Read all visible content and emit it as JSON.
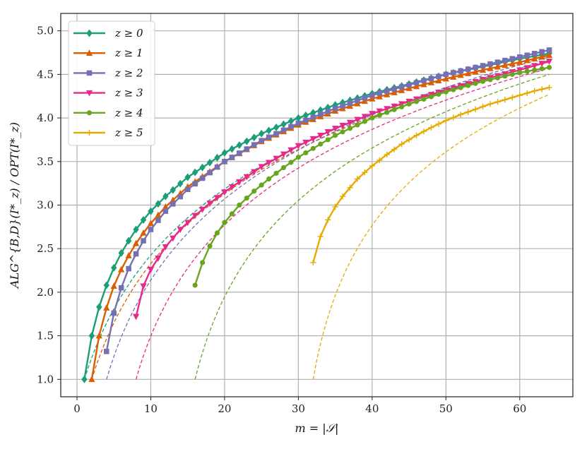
{
  "chart_data": {
    "type": "line",
    "xlabel": "m = |𝒮|",
    "ylabel": "ALG^{B,D}(I*_z) / OPT(I*_z)",
    "xlim": [
      -2.2,
      67.2
    ],
    "ylim": [
      0.8,
      5.2
    ],
    "xticks": [
      0,
      10,
      20,
      30,
      40,
      50,
      60
    ],
    "xtick_labels": [
      "0",
      "10",
      "20",
      "30",
      "40",
      "50",
      "60"
    ],
    "yticks": [
      1.0,
      1.5,
      2.0,
      2.5,
      3.0,
      3.5,
      4.0,
      4.5,
      5.0
    ],
    "ytick_labels": [
      "1.0",
      "1.5",
      "2.0",
      "2.5",
      "3.0",
      "3.5",
      "4.0",
      "4.5",
      "5.0"
    ],
    "grid": true,
    "legend_position": "top-left",
    "series": [
      {
        "name": "z ≥ 0",
        "color": "#1b9e77",
        "marker": "diamond",
        "x_start": 1,
        "x_end": 64,
        "points": [
          [
            1,
            1.0
          ],
          [
            2,
            1.5
          ],
          [
            3,
            1.83
          ],
          [
            4,
            2.08
          ],
          [
            5,
            2.28
          ],
          [
            6,
            2.45
          ],
          [
            7,
            2.59
          ],
          [
            8,
            2.72
          ],
          [
            9,
            2.83
          ],
          [
            10,
            2.93
          ],
          [
            12,
            3.1
          ],
          [
            15,
            3.32
          ],
          [
            20,
            3.6
          ],
          [
            25,
            3.82
          ],
          [
            30,
            4.0
          ],
          [
            35,
            4.15
          ],
          [
            40,
            4.28
          ],
          [
            45,
            4.39
          ],
          [
            50,
            4.5
          ],
          [
            55,
            4.59
          ],
          [
            60,
            4.68
          ],
          [
            64,
            4.74
          ]
        ],
        "dashed_start": 1
      },
      {
        "name": "z ≥ 1",
        "color": "#d95f02",
        "marker": "triangle-up",
        "x_start": 2,
        "x_end": 64,
        "points": [
          [
            2,
            1.0
          ],
          [
            3,
            1.5
          ],
          [
            4,
            1.82
          ],
          [
            5,
            2.07
          ],
          [
            6,
            2.26
          ],
          [
            7,
            2.42
          ],
          [
            8,
            2.56
          ],
          [
            9,
            2.68
          ],
          [
            10,
            2.79
          ],
          [
            12,
            2.98
          ],
          [
            15,
            3.21
          ],
          [
            20,
            3.5
          ],
          [
            25,
            3.73
          ],
          [
            30,
            3.92
          ],
          [
            35,
            4.08
          ],
          [
            40,
            4.22
          ],
          [
            45,
            4.34
          ],
          [
            50,
            4.45
          ],
          [
            55,
            4.55
          ],
          [
            60,
            4.64
          ],
          [
            64,
            4.72
          ]
        ],
        "dashed_start": 2
      },
      {
        "name": "z ≥ 2",
        "color": "#7570b3",
        "marker": "square",
        "x_start": 4,
        "x_end": 64,
        "points": [
          [
            4,
            1.32
          ],
          [
            5,
            1.76
          ],
          [
            6,
            2.05
          ],
          [
            7,
            2.27
          ],
          [
            8,
            2.44
          ],
          [
            9,
            2.59
          ],
          [
            10,
            2.72
          ],
          [
            12,
            2.93
          ],
          [
            15,
            3.18
          ],
          [
            20,
            3.5
          ],
          [
            25,
            3.74
          ],
          [
            30,
            3.94
          ],
          [
            35,
            4.11
          ],
          [
            40,
            4.26
          ],
          [
            45,
            4.38
          ],
          [
            50,
            4.5
          ],
          [
            55,
            4.6
          ],
          [
            60,
            4.7
          ],
          [
            64,
            4.78
          ]
        ],
        "dashed_start": 4
      },
      {
        "name": "z ≥ 3",
        "color": "#e7298a",
        "marker": "triangle-down",
        "x_start": 8,
        "x_end": 64,
        "points": [
          [
            8,
            1.72
          ],
          [
            9,
            2.07
          ],
          [
            10,
            2.26
          ],
          [
            12,
            2.52
          ],
          [
            14,
            2.72
          ],
          [
            16,
            2.88
          ],
          [
            18,
            3.02
          ],
          [
            20,
            3.15
          ],
          [
            25,
            3.44
          ],
          [
            30,
            3.68
          ],
          [
            35,
            3.88
          ],
          [
            40,
            4.05
          ],
          [
            45,
            4.19
          ],
          [
            50,
            4.32
          ],
          [
            55,
            4.44
          ],
          [
            60,
            4.55
          ],
          [
            64,
            4.65
          ]
        ],
        "dashed_start": 8
      },
      {
        "name": "z ≥ 4",
        "color": "#66a61e",
        "marker": "circle",
        "x_start": 16,
        "x_end": 64,
        "points": [
          [
            16,
            2.08
          ],
          [
            17,
            2.34
          ],
          [
            18,
            2.53
          ],
          [
            19,
            2.68
          ],
          [
            20,
            2.8
          ],
          [
            22,
            3.0
          ],
          [
            24,
            3.16
          ],
          [
            26,
            3.3
          ],
          [
            28,
            3.43
          ],
          [
            30,
            3.55
          ],
          [
            35,
            3.8
          ],
          [
            40,
            4.0
          ],
          [
            45,
            4.16
          ],
          [
            50,
            4.3
          ],
          [
            55,
            4.42
          ],
          [
            60,
            4.52
          ],
          [
            64,
            4.58
          ]
        ],
        "dashed_start": 16
      },
      {
        "name": "z ≥ 5",
        "color": "#e6ab02",
        "marker": "plus",
        "x_start": 32,
        "x_end": 64,
        "points": [
          [
            32,
            2.34
          ],
          [
            33,
            2.64
          ],
          [
            34,
            2.83
          ],
          [
            35,
            2.98
          ],
          [
            36,
            3.1
          ],
          [
            38,
            3.3
          ],
          [
            40,
            3.45
          ],
          [
            42,
            3.58
          ],
          [
            44,
            3.7
          ],
          [
            46,
            3.8
          ],
          [
            48,
            3.89
          ],
          [
            50,
            3.97
          ],
          [
            52,
            4.04
          ],
          [
            54,
            4.1
          ],
          [
            56,
            4.16
          ],
          [
            58,
            4.21
          ],
          [
            60,
            4.26
          ],
          [
            62,
            4.31
          ],
          [
            64,
            4.35
          ]
        ],
        "dashed_start": 32
      }
    ]
  }
}
